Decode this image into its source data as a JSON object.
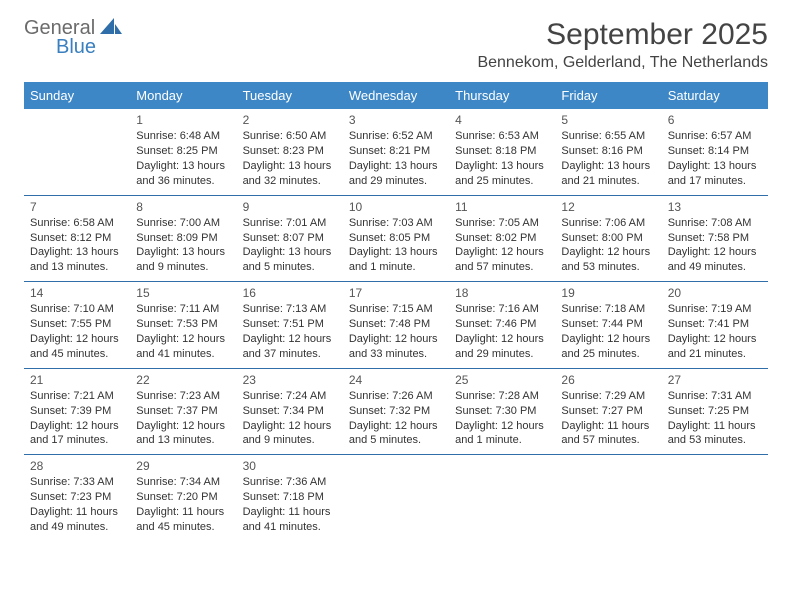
{
  "brand": {
    "general": "General",
    "blue": "Blue"
  },
  "title": "September 2025",
  "location": "Bennekom, Gelderland, The Netherlands",
  "header_bg": "#3d87c7",
  "header_fg": "#ffffff",
  "sep_color": "#2f6ea8",
  "dow": [
    "Sunday",
    "Monday",
    "Tuesday",
    "Wednesday",
    "Thursday",
    "Friday",
    "Saturday"
  ],
  "weeks": [
    [
      null,
      {
        "n": "1",
        "rise": "6:48 AM",
        "set": "8:25 PM",
        "day": "Daylight: 13 hours and 36 minutes."
      },
      {
        "n": "2",
        "rise": "6:50 AM",
        "set": "8:23 PM",
        "day": "Daylight: 13 hours and 32 minutes."
      },
      {
        "n": "3",
        "rise": "6:52 AM",
        "set": "8:21 PM",
        "day": "Daylight: 13 hours and 29 minutes."
      },
      {
        "n": "4",
        "rise": "6:53 AM",
        "set": "8:18 PM",
        "day": "Daylight: 13 hours and 25 minutes."
      },
      {
        "n": "5",
        "rise": "6:55 AM",
        "set": "8:16 PM",
        "day": "Daylight: 13 hours and 21 minutes."
      },
      {
        "n": "6",
        "rise": "6:57 AM",
        "set": "8:14 PM",
        "day": "Daylight: 13 hours and 17 minutes."
      }
    ],
    [
      {
        "n": "7",
        "rise": "6:58 AM",
        "set": "8:12 PM",
        "day": "Daylight: 13 hours and 13 minutes."
      },
      {
        "n": "8",
        "rise": "7:00 AM",
        "set": "8:09 PM",
        "day": "Daylight: 13 hours and 9 minutes."
      },
      {
        "n": "9",
        "rise": "7:01 AM",
        "set": "8:07 PM",
        "day": "Daylight: 13 hours and 5 minutes."
      },
      {
        "n": "10",
        "rise": "7:03 AM",
        "set": "8:05 PM",
        "day": "Daylight: 13 hours and 1 minute."
      },
      {
        "n": "11",
        "rise": "7:05 AM",
        "set": "8:02 PM",
        "day": "Daylight: 12 hours and 57 minutes."
      },
      {
        "n": "12",
        "rise": "7:06 AM",
        "set": "8:00 PM",
        "day": "Daylight: 12 hours and 53 minutes."
      },
      {
        "n": "13",
        "rise": "7:08 AM",
        "set": "7:58 PM",
        "day": "Daylight: 12 hours and 49 minutes."
      }
    ],
    [
      {
        "n": "14",
        "rise": "7:10 AM",
        "set": "7:55 PM",
        "day": "Daylight: 12 hours and 45 minutes."
      },
      {
        "n": "15",
        "rise": "7:11 AM",
        "set": "7:53 PM",
        "day": "Daylight: 12 hours and 41 minutes."
      },
      {
        "n": "16",
        "rise": "7:13 AM",
        "set": "7:51 PM",
        "day": "Daylight: 12 hours and 37 minutes."
      },
      {
        "n": "17",
        "rise": "7:15 AM",
        "set": "7:48 PM",
        "day": "Daylight: 12 hours and 33 minutes."
      },
      {
        "n": "18",
        "rise": "7:16 AM",
        "set": "7:46 PM",
        "day": "Daylight: 12 hours and 29 minutes."
      },
      {
        "n": "19",
        "rise": "7:18 AM",
        "set": "7:44 PM",
        "day": "Daylight: 12 hours and 25 minutes."
      },
      {
        "n": "20",
        "rise": "7:19 AM",
        "set": "7:41 PM",
        "day": "Daylight: 12 hours and 21 minutes."
      }
    ],
    [
      {
        "n": "21",
        "rise": "7:21 AM",
        "set": "7:39 PM",
        "day": "Daylight: 12 hours and 17 minutes."
      },
      {
        "n": "22",
        "rise": "7:23 AM",
        "set": "7:37 PM",
        "day": "Daylight: 12 hours and 13 minutes."
      },
      {
        "n": "23",
        "rise": "7:24 AM",
        "set": "7:34 PM",
        "day": "Daylight: 12 hours and 9 minutes."
      },
      {
        "n": "24",
        "rise": "7:26 AM",
        "set": "7:32 PM",
        "day": "Daylight: 12 hours and 5 minutes."
      },
      {
        "n": "25",
        "rise": "7:28 AM",
        "set": "7:30 PM",
        "day": "Daylight: 12 hours and 1 minute."
      },
      {
        "n": "26",
        "rise": "7:29 AM",
        "set": "7:27 PM",
        "day": "Daylight: 11 hours and 57 minutes."
      },
      {
        "n": "27",
        "rise": "7:31 AM",
        "set": "7:25 PM",
        "day": "Daylight: 11 hours and 53 minutes."
      }
    ],
    [
      {
        "n": "28",
        "rise": "7:33 AM",
        "set": "7:23 PM",
        "day": "Daylight: 11 hours and 49 minutes."
      },
      {
        "n": "29",
        "rise": "7:34 AM",
        "set": "7:20 PM",
        "day": "Daylight: 11 hours and 45 minutes."
      },
      {
        "n": "30",
        "rise": "7:36 AM",
        "set": "7:18 PM",
        "day": "Daylight: 11 hours and 41 minutes."
      },
      null,
      null,
      null,
      null
    ]
  ]
}
